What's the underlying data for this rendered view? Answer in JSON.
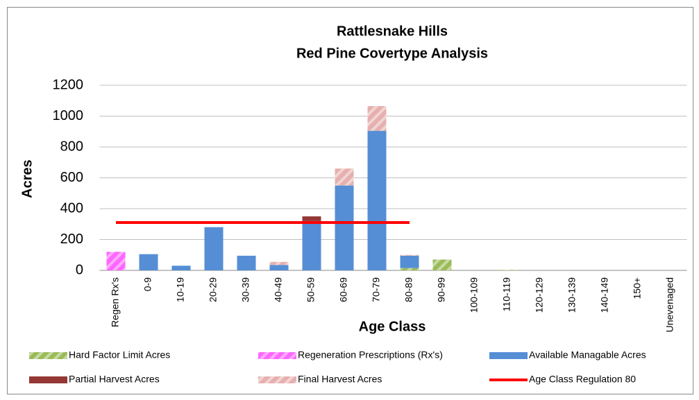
{
  "chart_data": {
    "type": "bar",
    "stacked": true,
    "title": "Rattlesnake Hills",
    "subtitle": "Red Pine Covertype Analysis",
    "xlabel": "Age Class",
    "ylabel": "Acres",
    "categories": [
      "Regen Rx's",
      "0-9",
      "10-19",
      "20-29",
      "30-39",
      "40-49",
      "50-59",
      "60-69",
      "70-79",
      "80-89",
      "90-99",
      "100-109",
      "110-119",
      "120-129",
      "130-139",
      "140-149",
      "150+",
      "Unevenaged"
    ],
    "ylim": [
      0,
      1200
    ],
    "yticks": [
      0,
      200,
      400,
      600,
      800,
      1000,
      1200
    ],
    "grid": true,
    "series": [
      {
        "name": "Hard Factor Limit Acres",
        "color": "#9bbb59",
        "hatch": true,
        "values": [
          0,
          0,
          0,
          0,
          0,
          0,
          0,
          0,
          0,
          15,
          70,
          0,
          3,
          0,
          0,
          0,
          0,
          0
        ]
      },
      {
        "name": "Regeneration Prescriptions (Rx's)",
        "color": "#ff66ff",
        "hatch": true,
        "values": [
          120,
          0,
          0,
          0,
          0,
          0,
          0,
          0,
          0,
          0,
          0,
          0,
          0,
          0,
          0,
          0,
          0,
          0
        ]
      },
      {
        "name": "Available Managable Acres",
        "color": "#558ed5",
        "hatch": false,
        "values": [
          0,
          105,
          30,
          280,
          95,
          35,
          320,
          550,
          905,
          80,
          0,
          0,
          0,
          0,
          0,
          0,
          0,
          0
        ]
      },
      {
        "name": "Partial Harvest Acres",
        "color": "#953735",
        "hatch": false,
        "values": [
          0,
          0,
          0,
          0,
          0,
          0,
          30,
          0,
          0,
          0,
          0,
          0,
          0,
          0,
          0,
          0,
          0,
          0
        ]
      },
      {
        "name": "Final Harvest Acres",
        "color": "#e6b0ae",
        "hatch": true,
        "values": [
          0,
          0,
          0,
          0,
          0,
          20,
          0,
          110,
          160,
          5,
          0,
          0,
          0,
          0,
          0,
          0,
          0,
          0
        ]
      },
      {
        "name": "Age Class Regulation 80",
        "color": "#ff0000",
        "type": "line",
        "values": [
          310,
          310,
          310,
          310,
          310,
          310,
          310,
          310,
          310,
          310,
          null,
          null,
          null,
          null,
          null,
          null,
          null,
          null
        ]
      }
    ]
  }
}
